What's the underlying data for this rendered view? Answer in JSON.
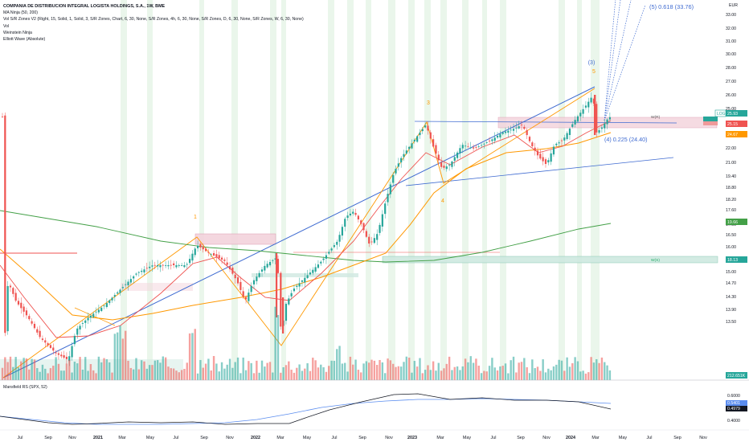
{
  "legend": {
    "title": "COMPANIA DE DISTRIBUCION INTEGRAL LOGISTA HOLDINGS, S.A., 1W, BME",
    "lines": [
      "MA Ninja (50, 200)",
      "Vol S/R Zones V2 (Right, 15, Solid, 1, Solid, 3, S/R Zones, Chart, 6, 30, None, S/R Zones, 4h, 6, 30, None, S/R Zones, D, 6, 30, None, S/R Zones, W, 6, 30, None)",
      "Vol",
      "Weinstein Ninja",
      "Elliott Wave (Absolute)"
    ]
  },
  "currency": "EUR",
  "mansfield_label": "Mansfield RS (SPX, 52)",
  "colors": {
    "up": "#26a69a",
    "down": "#ef5350",
    "ma_fast": "#ef5350",
    "ma_slow": "#ff9800",
    "ma200": "#43a047",
    "trend": "#3f6bd1",
    "wave": "#ff9800",
    "zone_fill": "#f3d3dc",
    "zone_green": "#cfe9e1",
    "highlight": "#e6f4e8"
  },
  "chart_data": {
    "type": "candlestick",
    "ylim": [
      13.1,
      33.8
    ],
    "y_ticks": [
      "33.00",
      "32.00",
      "31.00",
      "30.00",
      "28.00",
      "27.00",
      "26.00",
      "25.00",
      "24.00",
      "23.00",
      "22.00",
      "21.00",
      "19.40",
      "18.80",
      "18.20",
      "17.60",
      "17.00",
      "16.50",
      "16.00",
      "15.50",
      "15.00",
      "14.70",
      "14.30",
      "13.90",
      "13.50"
    ],
    "x_ticks": [
      "Jul",
      "Sep",
      "Nov",
      "2021",
      "Mar",
      "May",
      "Jul",
      "Sep",
      "Nov",
      "2022",
      "Mar",
      "May",
      "Jul",
      "Sep",
      "Nov",
      "2023",
      "Mar",
      "May",
      "Jul",
      "Sep",
      "Nov",
      "2024",
      "Mar",
      "May",
      "Jul",
      "Sep",
      "Nov"
    ],
    "year_ticks": [
      "2021",
      "2022",
      "2023",
      "2024"
    ],
    "price_badges": [
      {
        "label": "LOG",
        "value": "25.93",
        "color": "#26a69a"
      },
      {
        "label": "",
        "value": "25.15",
        "color": "#ef5350"
      },
      {
        "label": "",
        "value": "24.67",
        "color": "#ff9800"
      },
      {
        "label": "",
        "value": "19.66",
        "color": "#43a047"
      },
      {
        "label": "",
        "value": "18.13",
        "color": "#26a69a"
      },
      {
        "label": "",
        "value": "212.651K",
        "color": "#26a69a"
      }
    ],
    "zone_labels": [
      "W(R)",
      "W(S)"
    ],
    "wave_labels": [
      "1",
      "3",
      "4",
      "5",
      "(3)"
    ],
    "projection_labels": [
      "(5) 0.618 (33.76)",
      "(4) 0.225 (24.40)"
    ],
    "rs_ticks": [
      "0.6000",
      "0.4000"
    ],
    "rs_badges": [
      "0.5401",
      "0.4979"
    ],
    "ma50_label": "50",
    "ma200_label": "200"
  }
}
